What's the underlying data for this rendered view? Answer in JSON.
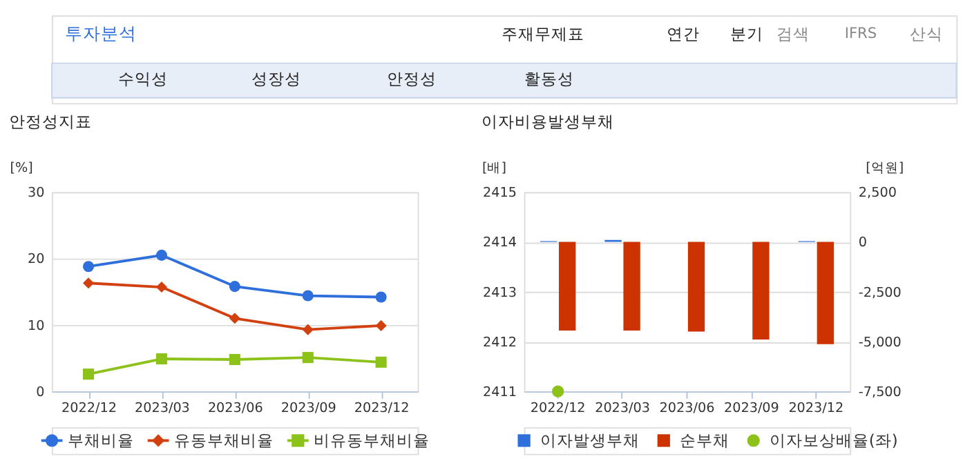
{
  "chart_data": [
    {
      "type": "line",
      "title": "안정성지표",
      "ylabel": "[%]",
      "annotations": [
        "투자분석",
        "주재무제표",
        "연간",
        "분기",
        "검색",
        "IFRS",
        "산식",
        "수익성",
        "성장성",
        "안정성",
        "활동성"
      ],
      "categories": [
        "2022/12",
        "2023/03",
        "2023/06",
        "2023/09",
        "2023/12"
      ],
      "series": [
        {
          "name": "부채비율",
          "color": "#2e6fdc",
          "marker": "circle",
          "values": [
            18.8,
            20.5,
            15.8,
            14.4,
            14.2
          ]
        },
        {
          "name": "유동부채비율",
          "color": "#d3400f",
          "marker": "diamond",
          "values": [
            16.3,
            15.7,
            11.0,
            9.3,
            9.9
          ]
        },
        {
          "name": "비유동부채비율",
          "color": "#8cc21a",
          "marker": "square",
          "values": [
            2.6,
            4.9,
            4.8,
            5.1,
            4.4
          ]
        }
      ],
      "ylim": [
        0,
        30
      ],
      "yticks": [
        0,
        10,
        20,
        30
      ],
      "grid": "y",
      "legend": "bottom",
      "line_style": "solid"
    },
    {
      "type": "bar",
      "title": "이자비용발생부채",
      "ylabel": "[배]",
      "y2label": "[억원]",
      "categories": [
        "2022/12",
        "2023/03",
        "2023/06",
        "2023/09",
        "2023/12"
      ],
      "series": [
        {
          "name": "이자발생부채",
          "color": "#2e6fdc",
          "axis": "y2",
          "values": [
            40,
            100,
            0,
            0,
            40
          ]
        },
        {
          "name": "순부채",
          "color": "#cc3300",
          "axis": "y2",
          "values": [
            -4450,
            -4450,
            -4500,
            -4900,
            -5130
          ]
        },
        {
          "name": "이자보상배율(좌)",
          "type": "scatter",
          "color": "#8cc21a",
          "marker": "circle",
          "values": [
            2411,
            null,
            null,
            null,
            null
          ]
        }
      ],
      "ylim": [
        2411,
        2415
      ],
      "yticks": [
        2411,
        2412,
        2413,
        2414,
        2415
      ],
      "y2lim": [
        -7500,
        2500
      ],
      "y2ticks": [
        {
          "value": -7500,
          "label": "-7,500"
        },
        {
          "value": -5000,
          "label": "-5,000"
        },
        {
          "value": -2500,
          "label": "-2,500"
        },
        0,
        {
          "value": 2500,
          "label": "2,500"
        }
      ],
      "grid": "y",
      "legend": "bottom"
    }
  ]
}
